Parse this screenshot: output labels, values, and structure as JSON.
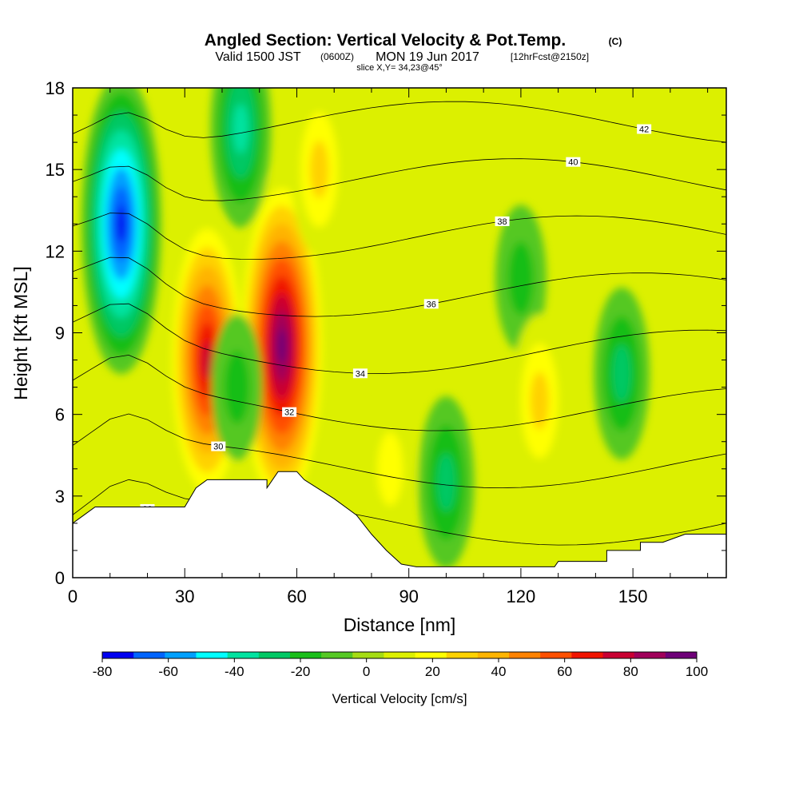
{
  "header": {
    "title": "Angled Section: Vertical Velocity & Pot.Temp.",
    "title_units": "(C)",
    "valid_prefix": "Valid 1500 JST",
    "valid_zulu": "(0600Z)",
    "valid_date": "MON 19 Jun 2017",
    "fcst": "[12hrFcst@2150z]",
    "slice": "slice X,Y= 34,23@45°"
  },
  "chart_data": {
    "type": "heatmap",
    "title": "Angled Section: Vertical Velocity & Pot.Temp. (C)",
    "xlabel": "Distance [nm]",
    "ylabel": "Height [Kft MSL]",
    "xlim": [
      0,
      175
    ],
    "ylim": [
      0,
      18
    ],
    "x_ticks": [
      "0",
      "30",
      "60",
      "90",
      "120",
      "150"
    ],
    "y_ticks": [
      "0",
      "3",
      "6",
      "9",
      "12",
      "15",
      "18"
    ],
    "colorbar": {
      "label": "Vertical Velocity [cm/s]",
      "tick_labels": [
        "-80",
        "-60",
        "-40",
        "-20",
        "0",
        "20",
        "40",
        "60",
        "80",
        "100"
      ],
      "levels": [
        -80,
        -70,
        -60,
        -50,
        -40,
        -30,
        -20,
        -10,
        0,
        10,
        20,
        30,
        40,
        50,
        60,
        70,
        80,
        90,
        100
      ],
      "colors": [
        "#0000f0",
        "#0064ff",
        "#00a0ff",
        "#00ffff",
        "#00e3a0",
        "#00c864",
        "#19be19",
        "#55c824",
        "#a5dc14",
        "#dcf000",
        "#ffff00",
        "#ffd200",
        "#ffb400",
        "#ff8200",
        "#ff5000",
        "#f01400",
        "#c80032",
        "#a0005a",
        "#6e0078"
      ]
    },
    "contours": {
      "variable": "Potential Temperature",
      "labeled_levels": [
        "28",
        "30",
        "32",
        "34",
        "36",
        "38",
        "40",
        "42"
      ]
    },
    "vertical_velocity_features": [
      {
        "x": 13,
        "y": 13,
        "value": -80,
        "kind": "downdraft core"
      },
      {
        "x": 36,
        "y": 8,
        "value": 80,
        "kind": "updraft core"
      },
      {
        "x": 56,
        "y": 8.5,
        "value": 100,
        "kind": "updraft core"
      },
      {
        "x": 45,
        "y": 16.5,
        "value": -40,
        "kind": "downdraft"
      },
      {
        "x": 44,
        "y": 7,
        "value": -20,
        "kind": "downdraft"
      },
      {
        "x": 100,
        "y": 3.5,
        "value": -30,
        "kind": "downdraft"
      },
      {
        "x": 120,
        "y": 11,
        "value": -20,
        "kind": "downdraft"
      },
      {
        "x": 147,
        "y": 7.5,
        "value": -30,
        "kind": "downdraft"
      },
      {
        "x": 125,
        "y": 6.5,
        "value": 30,
        "kind": "updraft"
      },
      {
        "x": 85,
        "y": 4,
        "value": 20,
        "kind": "updraft"
      },
      {
        "x": 66,
        "y": 15,
        "value": 30,
        "kind": "updraft"
      }
    ],
    "terrain_profile": [
      {
        "x": 0,
        "y": 2.0
      },
      {
        "x": 3,
        "y": 2.3
      },
      {
        "x": 6,
        "y": 2.6
      },
      {
        "x": 30,
        "y": 2.6
      },
      {
        "x": 33,
        "y": 3.3
      },
      {
        "x": 36,
        "y": 3.6
      },
      {
        "x": 52,
        "y": 3.6
      },
      {
        "x": 52,
        "y": 3.3
      },
      {
        "x": 55,
        "y": 3.9
      },
      {
        "x": 60,
        "y": 3.9
      },
      {
        "x": 62,
        "y": 3.6
      },
      {
        "x": 70,
        "y": 2.9
      },
      {
        "x": 76,
        "y": 2.3
      },
      {
        "x": 80,
        "y": 1.6
      },
      {
        "x": 84,
        "y": 1.0
      },
      {
        "x": 88,
        "y": 0.5
      },
      {
        "x": 92,
        "y": 0.4
      },
      {
        "x": 115,
        "y": 0.4
      },
      {
        "x": 129,
        "y": 0.4
      },
      {
        "x": 130,
        "y": 0.6
      },
      {
        "x": 143,
        "y": 0.6
      },
      {
        "x": 143,
        "y": 1.0
      },
      {
        "x": 152,
        "y": 1.0
      },
      {
        "x": 152,
        "y": 1.3
      },
      {
        "x": 158,
        "y": 1.3
      },
      {
        "x": 164,
        "y": 1.6
      },
      {
        "x": 175,
        "y": 1.6
      }
    ]
  }
}
